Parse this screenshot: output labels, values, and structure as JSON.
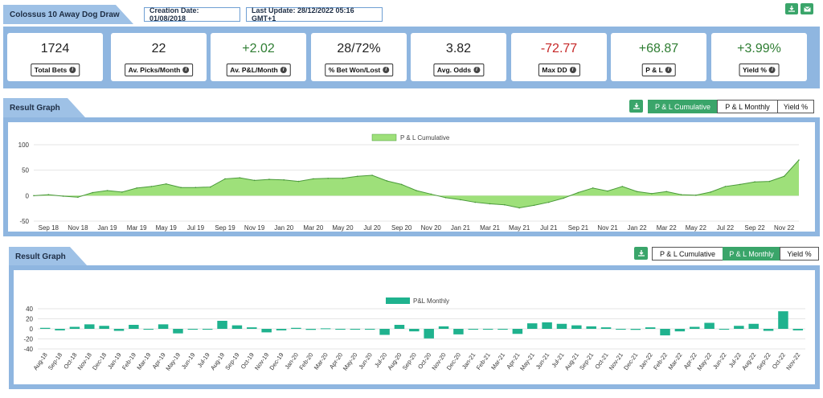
{
  "header": {
    "title": "Colossus 10 Away Dog Draw",
    "creation_date": "Creation Date: 01/08/2018",
    "last_update": "Last Update: 28/12/2022 05:16 GMT+1",
    "download_icon": "download-icon",
    "email_icon": "email-icon"
  },
  "stats": [
    {
      "value": "1724",
      "label": "Total Bets",
      "tone": "neutral"
    },
    {
      "value": "22",
      "label": "Av. Picks/Month",
      "tone": "neutral"
    },
    {
      "value": "+2.02",
      "label": "Av. P&L/Month",
      "tone": "pos"
    },
    {
      "value": "28/72%",
      "label": "% Bet Won/Lost",
      "tone": "neutral"
    },
    {
      "value": "3.82",
      "label": "Avg. Odds",
      "tone": "neutral"
    },
    {
      "value": "-72.77",
      "label": "Max DD",
      "tone": "neg"
    },
    {
      "value": "+68.87",
      "label": "P & L",
      "tone": "pos"
    },
    {
      "value": "+3.99%",
      "label": "Yield %",
      "tone": "pos"
    }
  ],
  "graph1": {
    "section_title": "Result Graph",
    "toggles": [
      "P & L Cumulative",
      "P & L Monthly",
      "Yield %"
    ],
    "active_toggle": 0
  },
  "graph2": {
    "section_title": "Result Graph",
    "toggles": [
      "P & L Cumulative",
      "P & L Monthly",
      "Yield %"
    ],
    "active_toggle": 1
  },
  "colors": {
    "accent_green": "#3aa56a",
    "area_fill": "#9ee07a",
    "bar_fill": "#1fb28e",
    "frame_blue": "#8fb6e0"
  },
  "chart_data": [
    {
      "type": "area",
      "legend": "P & L Cumulative",
      "ylim": [
        -50,
        100
      ],
      "yticks": [
        -50,
        0,
        50,
        100
      ],
      "x_tick_labels": [
        "Sep 18",
        "Nov 18",
        "Jan 19",
        "Mar 19",
        "May 19",
        "Jul 19",
        "Sep 19",
        "Nov 19",
        "Jan 20",
        "Mar 20",
        "May 20",
        "Jul 20",
        "Sep 20",
        "Nov 20",
        "Jan 21",
        "Mar 21",
        "May 21",
        "Jul 21",
        "Sep 21",
        "Nov 21",
        "Jan 22",
        "Mar 22",
        "May 22",
        "Jul 22",
        "Sep 22",
        "Nov 22"
      ],
      "x": [
        "Aug 18",
        "Sep 18",
        "Oct 18",
        "Nov 18",
        "Dec 18",
        "Jan 19",
        "Feb 19",
        "Mar 19",
        "Apr 19",
        "May 19",
        "Jun 19",
        "Jul 19",
        "Aug 19",
        "Sep 19",
        "Oct 19",
        "Nov 19",
        "Dec 19",
        "Jan 20",
        "Feb 20",
        "Mar 20",
        "Apr 20",
        "May 20",
        "Jun 20",
        "Jul 20",
        "Aug 20",
        "Sep 20",
        "Oct 20",
        "Nov 20",
        "Dec 20",
        "Jan 21",
        "Feb 21",
        "Mar 21",
        "Apr 21",
        "May 21",
        "Jun 21",
        "Jul 21",
        "Aug 21",
        "Sep 21",
        "Oct 21",
        "Nov 21",
        "Dec 21",
        "Jan 22",
        "Feb 22",
        "Mar 22",
        "Apr 22",
        "May 22",
        "Jun 22",
        "Jul 22",
        "Aug 22",
        "Sep 22",
        "Oct 22",
        "Nov 22",
        "Dec 22"
      ],
      "values": [
        0,
        2,
        -1,
        -3,
        6,
        10,
        7,
        15,
        18,
        23,
        16,
        16,
        17,
        33,
        35,
        30,
        32,
        31,
        28,
        33,
        34,
        34,
        38,
        40,
        29,
        22,
        10,
        3,
        -4,
        -8,
        -13,
        -16,
        -18,
        -24,
        -19,
        -13,
        -5,
        6,
        15,
        9,
        18,
        8,
        4,
        8,
        2,
        1,
        7,
        18,
        22,
        27,
        28,
        38,
        70
      ]
    },
    {
      "type": "bar",
      "legend": "P&L Monthly",
      "ylim": [
        -40,
        40
      ],
      "yticks": [
        -40,
        -20,
        0,
        20,
        40
      ],
      "categories": [
        "Aug-18",
        "Sep-18",
        "Oct-18",
        "Nov-18",
        "Dec-18",
        "Jan-19",
        "Feb-19",
        "Mar-19",
        "Apr-19",
        "May-19",
        "Jun-19",
        "Jul-19",
        "Aug-19",
        "Sep-19",
        "Oct-19",
        "Nov-19",
        "Dec-19",
        "Jan-20",
        "Feb-20",
        "Mar-20",
        "Apr-20",
        "May-20",
        "Jun-20",
        "Jul-20",
        "Aug-20",
        "Sep-20",
        "Oct-20",
        "Nov-20",
        "Dec-20",
        "Jan-21",
        "Feb-21",
        "Mar-21",
        "Apr-21",
        "May-21",
        "Jun-21",
        "Jul-21",
        "Aug-21",
        "Sep-21",
        "Oct-21",
        "Nov-21",
        "Dec-21",
        "Jan-22",
        "Feb-22",
        "Mar-22",
        "Apr-22",
        "May-22",
        "Jun-22",
        "Jul-22",
        "Aug-22",
        "Sep-22",
        "Oct-22",
        "Nov-22"
      ],
      "values": [
        2,
        -3,
        4,
        9,
        6,
        -4,
        8,
        -1,
        9,
        -9,
        -1,
        -1,
        16,
        7,
        3,
        -7,
        -3,
        2,
        -2,
        1,
        -1,
        -1,
        -1,
        -12,
        8,
        -5,
        -19,
        5,
        -11,
        0,
        0,
        0,
        -10,
        11,
        13,
        10,
        7,
        5,
        3,
        -1,
        -2,
        3,
        -13,
        -5,
        4,
        12,
        0,
        6,
        10,
        -4,
        35,
        -3
      ]
    }
  ]
}
